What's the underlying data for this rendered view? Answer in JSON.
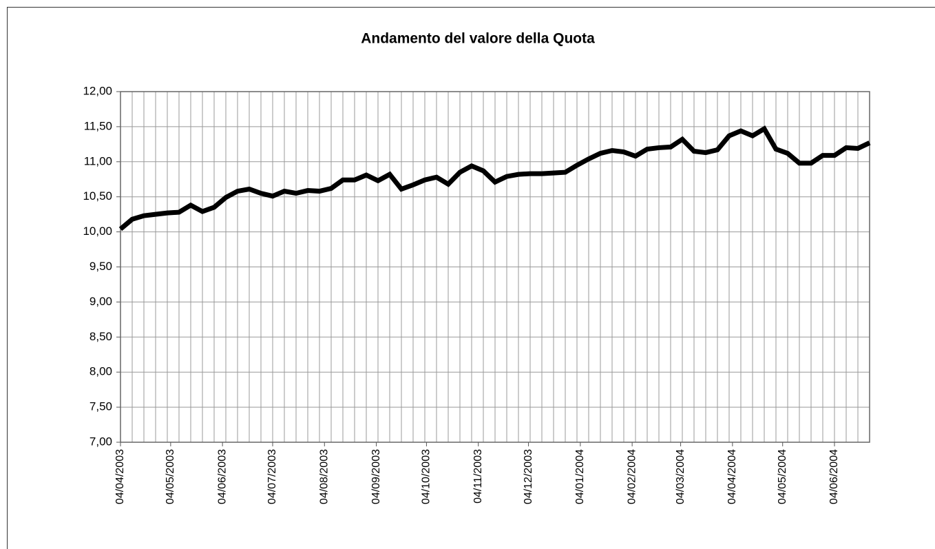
{
  "chart_data": {
    "type": "line",
    "title": "Andamento del valore della Quota",
    "x": [
      "04/04/2003",
      "11/04/2003",
      "18/04/2003",
      "25/04/2003",
      "02/05/2003",
      "09/05/2003",
      "16/05/2003",
      "23/05/2003",
      "30/05/2003",
      "06/06/2003",
      "13/06/2003",
      "20/06/2003",
      "27/06/2003",
      "04/07/2003",
      "11/07/2003",
      "18/07/2003",
      "25/07/2003",
      "01/08/2003",
      "08/08/2003",
      "15/08/2003",
      "22/08/2003",
      "29/08/2003",
      "05/09/2003",
      "12/09/2003",
      "19/09/2003",
      "26/09/2003",
      "03/10/2003",
      "10/10/2003",
      "17/10/2003",
      "24/10/2003",
      "31/10/2003",
      "07/11/2003",
      "14/11/2003",
      "21/11/2003",
      "28/11/2003",
      "05/12/2003",
      "12/12/2003",
      "19/12/2003",
      "26/12/2003",
      "02/01/2004",
      "09/01/2004",
      "16/01/2004",
      "23/01/2004",
      "30/01/2004",
      "06/02/2004",
      "13/02/2004",
      "20/02/2004",
      "27/02/2004",
      "05/03/2004",
      "12/03/2004",
      "19/03/2004",
      "26/03/2004",
      "02/04/2004",
      "09/04/2004",
      "16/04/2004",
      "23/04/2004",
      "30/04/2004",
      "07/05/2004",
      "14/05/2004",
      "21/05/2004",
      "28/05/2004",
      "04/06/2004",
      "11/06/2004",
      "18/06/2004",
      "25/06/2004"
    ],
    "series": [
      {
        "name": "Quota",
        "color": "#000000",
        "values": [
          10.04,
          10.18,
          10.23,
          10.25,
          10.27,
          10.28,
          10.38,
          10.29,
          10.35,
          10.49,
          10.58,
          10.61,
          10.55,
          10.51,
          10.58,
          10.55,
          10.59,
          10.58,
          10.62,
          10.74,
          10.74,
          10.81,
          10.73,
          10.82,
          10.61,
          10.67,
          10.74,
          10.78,
          10.68,
          10.85,
          10.94,
          10.87,
          10.71,
          10.79,
          10.82,
          10.83,
          10.83,
          10.84,
          10.85,
          10.95,
          11.04,
          11.12,
          11.16,
          11.14,
          11.08,
          11.18,
          11.2,
          11.21,
          11.32,
          11.15,
          11.13,
          11.17,
          11.37,
          11.44,
          11.37,
          11.47,
          11.18,
          11.12,
          10.98,
          10.98,
          11.09,
          11.09,
          11.2,
          11.19,
          11.27
        ]
      }
    ],
    "xlim": [
      "04/04/2003",
      "25/06/2004"
    ],
    "xticks": [
      "04/04/2003",
      "04/05/2003",
      "04/06/2003",
      "04/07/2003",
      "04/08/2003",
      "04/09/2003",
      "04/10/2003",
      "04/11/2003",
      "04/12/2003",
      "04/01/2004",
      "04/02/2004",
      "04/03/2004",
      "04/04/2004",
      "04/05/2004",
      "04/06/2004"
    ],
    "ylim": [
      7,
      12
    ],
    "yticks": [
      {
        "value": 7,
        "label": "7,00"
      },
      {
        "value": 7.5,
        "label": "7,50"
      },
      {
        "value": 8,
        "label": "8,00"
      },
      {
        "value": 8.5,
        "label": "8,50"
      },
      {
        "value": 9,
        "label": "9,00"
      },
      {
        "value": 9.5,
        "label": "9,50"
      },
      {
        "value": 10,
        "label": "10,00"
      },
      {
        "value": 10.5,
        "label": "10,50"
      },
      {
        "value": 11,
        "label": "11,00"
      },
      {
        "value": 11.5,
        "label": "11,50"
      },
      {
        "value": 12,
        "label": "12,00"
      }
    ],
    "grid": true
  }
}
